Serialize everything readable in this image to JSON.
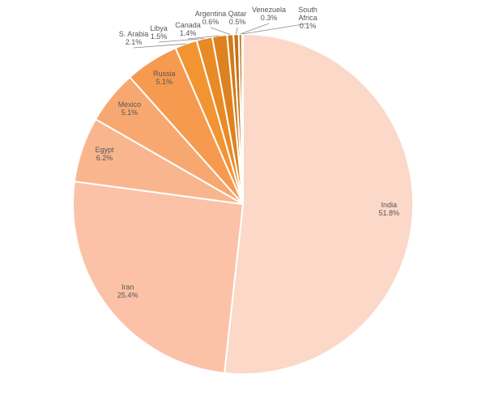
{
  "chart_data": {
    "type": "pie",
    "title": "",
    "unit": "%",
    "categories": [
      "India",
      "Iran",
      "Egypt",
      "Mexico",
      "Russia",
      "S. Arabia",
      "Libya",
      "Canada",
      "Argentina",
      "Qatar",
      "Venezuela",
      "South Africa"
    ],
    "values": [
      51.8,
      25.4,
      6.2,
      5.1,
      5.1,
      2.1,
      1.5,
      1.4,
      0.6,
      0.5,
      0.3,
      0.1
    ],
    "labels": [
      "51.8%",
      "25.4%",
      "6.2%",
      "5.1%",
      "5.1%",
      "2.1%",
      "1.5%",
      "1.4%",
      "0.6%",
      "0.5%",
      "0.3%",
      "0.1%"
    ],
    "colors": [
      "#fcd8c8",
      "#fbc2a8",
      "#f9b68e",
      "#f7a870",
      "#f69a50",
      "#f39432",
      "#e98a24",
      "#de811e",
      "#d27a1a",
      "#c77214",
      "#bb6a10",
      "#ad620c"
    ],
    "start_angle": "12 o'clock",
    "direction": "clockwise",
    "legend": "none"
  }
}
